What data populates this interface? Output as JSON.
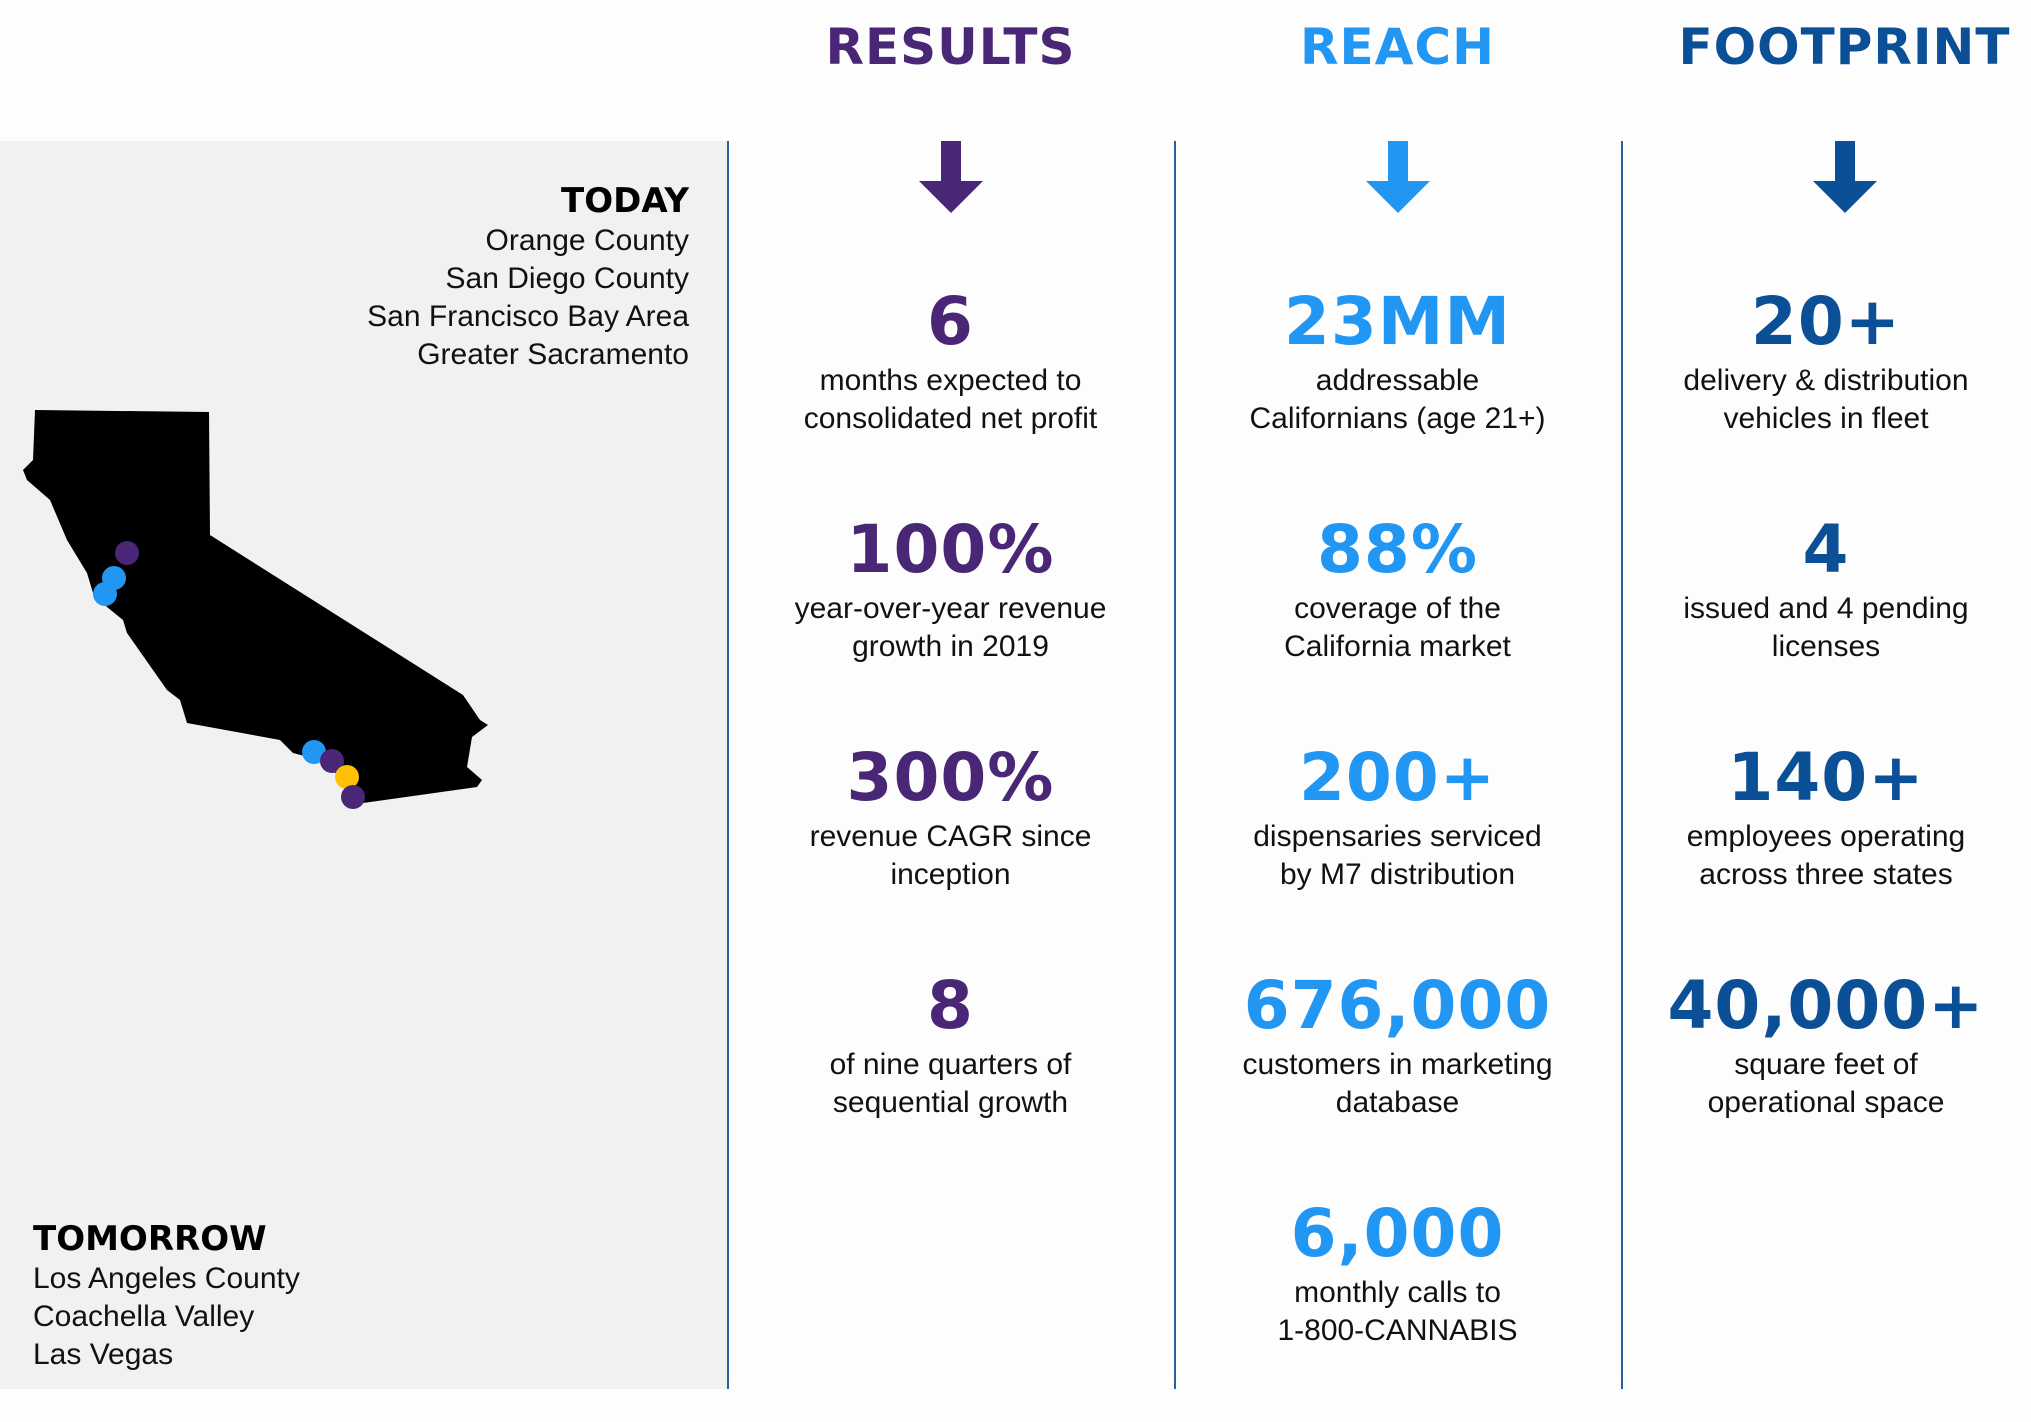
{
  "columns": [
    {
      "title": "RESULTS",
      "color": "#4a2677",
      "stats": [
        {
          "value": "6",
          "desc": [
            "months expected to",
            "consolidated net profit"
          ]
        },
        {
          "value": "100%",
          "desc": [
            "year-over-year revenue",
            "growth in 2019"
          ]
        },
        {
          "value": "300%",
          "desc": [
            "revenue CAGR since",
            "inception"
          ]
        },
        {
          "value": "8",
          "desc": [
            "of nine quarters of",
            "sequential growth"
          ]
        }
      ]
    },
    {
      "title": "REACH",
      "color": "#2196f3",
      "stats": [
        {
          "value": "23MM",
          "desc": [
            "addressable",
            "Californians (age 21+)"
          ]
        },
        {
          "value": "88%",
          "desc": [
            "coverage of the",
            "California market"
          ]
        },
        {
          "value": "200+",
          "desc": [
            "dispensaries serviced",
            "by M7 distribution"
          ]
        },
        {
          "value": "676,000",
          "desc": [
            "customers in marketing",
            "database"
          ]
        },
        {
          "value": "6,000",
          "desc": [
            "monthly calls to",
            "1-800-CANNABIS"
          ]
        }
      ]
    },
    {
      "title": "FOOTPRINT",
      "color": "#0b4f96",
      "stats": [
        {
          "value": "20+",
          "desc": [
            "delivery & distribution",
            "vehicles in fleet"
          ]
        },
        {
          "value": "4",
          "desc": [
            "issued and 4 pending",
            "licenses"
          ]
        },
        {
          "value": "140+",
          "desc": [
            "employees operating",
            "across three states"
          ]
        },
        {
          "value": "40,000+",
          "desc": [
            "square feet of",
            "operational space"
          ]
        }
      ]
    }
  ],
  "today": {
    "title": "TODAY",
    "locations": [
      "Orange County",
      "San Diego County",
      "San Francisco Bay Area",
      "Greater Sacramento"
    ]
  },
  "tomorrow": {
    "title": "TOMORROW",
    "locations": [
      "Los Angeles County",
      "Coachella Valley",
      "Las Vegas"
    ]
  },
  "map": {
    "marker_colors": {
      "purple": "#4a2677",
      "blue": "#2196f3",
      "yellow": "#ffc107"
    }
  }
}
